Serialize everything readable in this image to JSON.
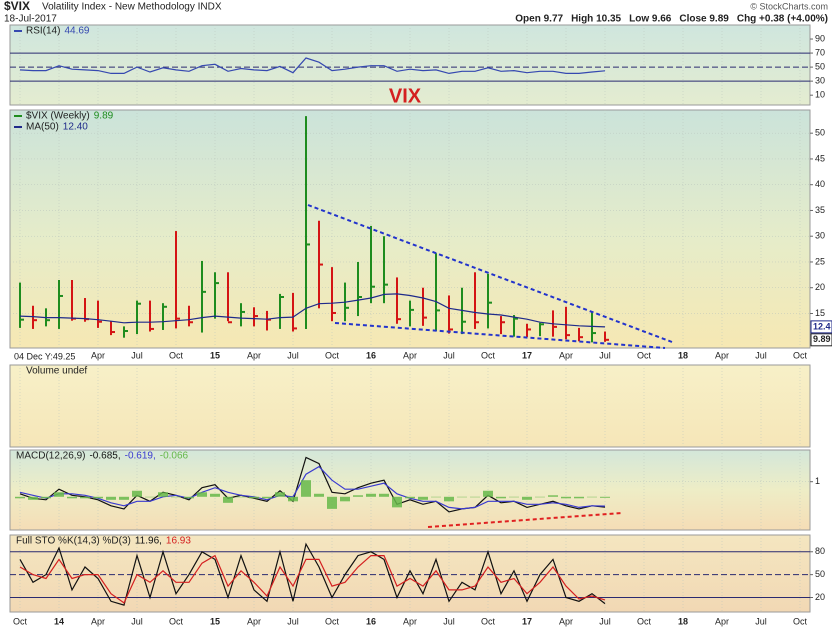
{
  "header": {
    "symbol": "$VIX",
    "title": "Volatility Index - New Methodology INDX",
    "date": "18-Jul-2017",
    "stats": [
      "Open 9.77",
      "High 10.35",
      "Low 9.66",
      "Close 9.89",
      "Chg +0.38 (+4.00%)"
    ],
    "credit": "© StockCharts.com"
  },
  "time_axis": {
    "crosshair": "04 Dec Y:49.25",
    "categories": [
      "Oct",
      null,
      null,
      "14",
      null,
      null,
      "Apr",
      null,
      null,
      "Jul",
      null,
      null,
      "Oct",
      null,
      null,
      "15",
      null,
      null,
      "Apr",
      null,
      null,
      "Jul",
      null,
      null,
      "Oct",
      null,
      null,
      "16",
      null,
      null,
      "Apr",
      null,
      null,
      "Jul",
      null,
      null,
      "Oct",
      null,
      null,
      "17",
      null,
      null,
      "Apr",
      null,
      null,
      "Jul",
      null,
      null,
      "Oct",
      null,
      null,
      "18",
      null,
      null,
      "Apr",
      null,
      null,
      "Jul",
      null,
      null,
      "Oct"
    ]
  },
  "chart_data": [
    {
      "type": "hlc",
      "annotation": "VIX",
      "ylim": [
        8.3,
        54.5
      ],
      "yticks": [
        15,
        20,
        25,
        30,
        35,
        40,
        45,
        50
      ],
      "grid": true,
      "value_boxes": true,
      "series": [
        {
          "name": "$VIX (Weekly)",
          "last_label": "9.89",
          "up_color": "#1e8c1e",
          "down_color": "#d41414",
          "values": [
            13.8,
            13.7,
            13.7,
            18.4,
            14.0,
            13.9,
            13.4,
            11.4,
            11.6,
            16.9,
            12.0,
            16.3,
            14.0,
            13.3,
            19.2,
            20.9,
            13.3,
            15.3,
            14.5,
            13.8,
            18.2,
            12.1,
            28.4,
            24.5,
            15.1,
            16.1,
            18.2,
            20.2,
            20.6,
            13.9,
            15.7,
            14.2,
            15.6,
            11.9,
            13.4,
            13.3,
            17.1,
            13.3,
            14.0,
            11.9,
            12.9,
            12.4,
            10.8,
            10.4,
            11.2,
            9.89,
            null,
            null,
            null,
            null,
            null,
            null,
            null,
            null,
            null,
            null,
            null,
            null,
            null,
            null,
            null
          ],
          "highs": [
            21,
            16.5,
            16,
            21.5,
            21.5,
            18,
            17.5,
            13.5,
            12.5,
            17.5,
            17.5,
            17,
            31,
            16.5,
            25.2,
            23,
            23,
            17,
            16.2,
            15.5,
            18.8,
            19,
            53.3,
            33,
            24,
            21,
            25,
            32,
            30,
            22,
            17.5,
            20,
            26.7,
            18.5,
            20,
            23,
            22.7,
            14.5,
            14.7,
            13,
            13.2,
            15.6,
            16.3,
            12.2,
            15.2,
            11.5,
            null,
            null,
            null,
            null,
            null,
            null,
            null,
            null,
            null,
            null,
            null,
            null,
            null,
            null,
            null
          ],
          "lows": [
            12.2,
            12,
            12.5,
            12,
            13.6,
            13.4,
            12.2,
            10.8,
            10.3,
            11,
            11.5,
            11.8,
            12.1,
            12.5,
            11.3,
            14,
            13.5,
            12.5,
            12.5,
            11.7,
            12,
            11.5,
            12,
            16,
            13.5,
            13.5,
            14.5,
            17,
            17,
            13,
            12.5,
            12.6,
            11.6,
            11.1,
            11,
            12,
            12.1,
            11,
            10.5,
            10.4,
            10.6,
            10.5,
            10.0,
            9.6,
            9.4,
            9.5,
            null,
            null,
            null,
            null,
            null,
            null,
            null,
            null,
            null,
            null,
            null,
            null,
            null,
            null,
            null
          ]
        },
        {
          "name": "MA(50)",
          "last_label": "12.40",
          "color": "#1f2a8a",
          "type": "line",
          "values": [
            14.5,
            14.4,
            14.2,
            14.2,
            14.1,
            14.0,
            13.8,
            13.5,
            13.2,
            13.3,
            13.3,
            13.4,
            13.6,
            13.8,
            14.2,
            14.5,
            14.3,
            14.1,
            14.0,
            13.9,
            14.2,
            14.3,
            16.0,
            16.9,
            17.0,
            17.2,
            17.6,
            18.0,
            18.7,
            18.8,
            18.5,
            18.0,
            17.3,
            16.0,
            15.6,
            15.2,
            14.9,
            14.7,
            14.3,
            13.9,
            13.3,
            13.0,
            12.8,
            12.6,
            12.5,
            12.4,
            null,
            null,
            null,
            null,
            null,
            null,
            null,
            null,
            null,
            null,
            null,
            null,
            null,
            null,
            null
          ]
        }
      ]
    },
    {
      "type": "line",
      "ylim": [
        -4,
        110
      ],
      "yticks": [
        10,
        30,
        50,
        70,
        90
      ],
      "guides": [
        30,
        70
      ],
      "dashed_guides": [
        50
      ],
      "series": [
        {
          "name": "RSI(14)",
          "last_label": "44.69",
          "color": "#3548b0",
          "values": [
            46,
            45,
            45,
            52,
            47,
            46,
            45,
            41,
            41,
            50,
            43,
            49,
            46,
            44,
            52,
            54,
            44,
            48,
            46,
            45,
            51,
            42,
            63,
            57,
            45,
            47,
            50,
            52,
            52,
            44,
            47,
            45,
            46,
            41,
            44,
            44,
            49,
            44,
            45,
            42,
            44,
            44,
            41,
            41,
            43,
            44.69,
            null,
            null,
            null,
            null,
            null,
            null,
            null,
            null,
            null,
            null,
            null,
            null,
            null,
            null,
            null
          ]
        }
      ]
    },
    {
      "type": "volume",
      "label": "Volume undef",
      "series": []
    },
    {
      "type": "line",
      "label": "MACD(12,26,9)",
      "ylim": [
        -2.2,
        3.1
      ],
      "yticks": [
        1
      ],
      "grid": true,
      "series": [
        {
          "last_label": "-0.685,",
          "color": "#111111",
          "values": [
            0.2,
            -0.1,
            -0.2,
            0.5,
            0.1,
            0,
            -0.2,
            -0.6,
            -0.8,
            0.1,
            -0.3,
            0.3,
            0.1,
            -0.2,
            0.6,
            0.8,
            -0.1,
            0.1,
            -0.1,
            -0.3,
            0.4,
            -0.3,
            2.6,
            2.2,
            0.3,
            0.2,
            0.6,
            0.9,
            1.1,
            -0.5,
            -0.2,
            -0.5,
            -0.3,
            -1.0,
            -0.8,
            -0.7,
            0.1,
            -0.4,
            -0.3,
            -0.7,
            -0.5,
            -0.3,
            -0.6,
            -0.8,
            -0.6,
            -0.685,
            null,
            null,
            null,
            null,
            null,
            null,
            null,
            null,
            null,
            null,
            null,
            null,
            null,
            null,
            null
          ]
        },
        {
          "last_label": "-0.619,",
          "color": "#3a3ad0",
          "values": [
            0.3,
            0.1,
            -0.1,
            0.2,
            0.2,
            0.1,
            -0.1,
            -0.4,
            -0.6,
            -0.3,
            -0.3,
            0,
            0.1,
            -0.1,
            0.3,
            0.6,
            0.3,
            0.1,
            0,
            -0.2,
            0.1,
            0,
            1.5,
            2.0,
            1.1,
            0.5,
            0.5,
            0.7,
            0.9,
            0.2,
            -0.1,
            -0.3,
            -0.3,
            -0.7,
            -0.8,
            -0.7,
            -0.3,
            -0.3,
            -0.3,
            -0.5,
            -0.5,
            -0.4,
            -0.5,
            -0.7,
            -0.6,
            -0.619,
            null,
            null,
            null,
            null,
            null,
            null,
            null,
            null,
            null,
            null,
            null,
            null,
            null,
            null,
            null
          ]
        },
        {
          "last_label": "-0.066",
          "color": "#66b84a",
          "type": "bar",
          "values": [
            -0.1,
            -0.2,
            -0.1,
            0.3,
            -0.1,
            -0.1,
            -0.1,
            -0.2,
            -0.2,
            0.4,
            0,
            0.3,
            0,
            -0.1,
            0.3,
            0.2,
            -0.4,
            0,
            -0.1,
            -0.1,
            0.3,
            -0.3,
            1.1,
            0.2,
            -0.8,
            -0.3,
            0.1,
            0.2,
            0.2,
            -0.7,
            -0.1,
            -0.2,
            0,
            -0.3,
            0,
            0,
            0.4,
            -0.1,
            0,
            -0.2,
            0,
            0.1,
            -0.1,
            -0.1,
            0,
            -0.066,
            null,
            null,
            null,
            null,
            null,
            null,
            null,
            null,
            null,
            null,
            null,
            null,
            null,
            null,
            null
          ]
        }
      ]
    },
    {
      "type": "line",
      "label": "Full STO %K(14,3) %D(3)",
      "ylim": [
        1,
        102
      ],
      "yticks": [
        20,
        50,
        80
      ],
      "guides": [
        20,
        80
      ],
      "dashed_guides": [
        50
      ],
      "series": [
        {
          "last_label": "11.96,",
          "color": "#111111",
          "values": [
            70,
            40,
            50,
            85,
            30,
            60,
            45,
            15,
            10,
            75,
            20,
            80,
            25,
            50,
            80,
            70,
            20,
            75,
            30,
            15,
            80,
            15,
            90,
            60,
            20,
            50,
            75,
            80,
            70,
            20,
            55,
            25,
            70,
            15,
            40,
            30,
            80,
            25,
            55,
            15,
            50,
            70,
            20,
            15,
            25,
            11.96,
            null,
            null,
            null,
            null,
            null,
            null,
            null,
            null,
            null,
            null,
            null,
            null,
            null,
            null,
            null
          ]
        },
        {
          "last_label": "16.93",
          "color": "#d42020",
          "values": [
            60,
            50,
            45,
            70,
            45,
            50,
            50,
            25,
            13,
            50,
            40,
            55,
            40,
            40,
            65,
            75,
            35,
            55,
            40,
            22,
            60,
            35,
            70,
            70,
            35,
            40,
            60,
            75,
            75,
            35,
            45,
            35,
            55,
            30,
            30,
            35,
            60,
            40,
            45,
            25,
            40,
            60,
            35,
            18,
            22,
            16.93,
            null,
            null,
            null,
            null,
            null,
            null,
            null,
            null,
            null,
            null,
            null,
            null,
            null,
            null,
            null
          ]
        }
      ]
    }
  ]
}
